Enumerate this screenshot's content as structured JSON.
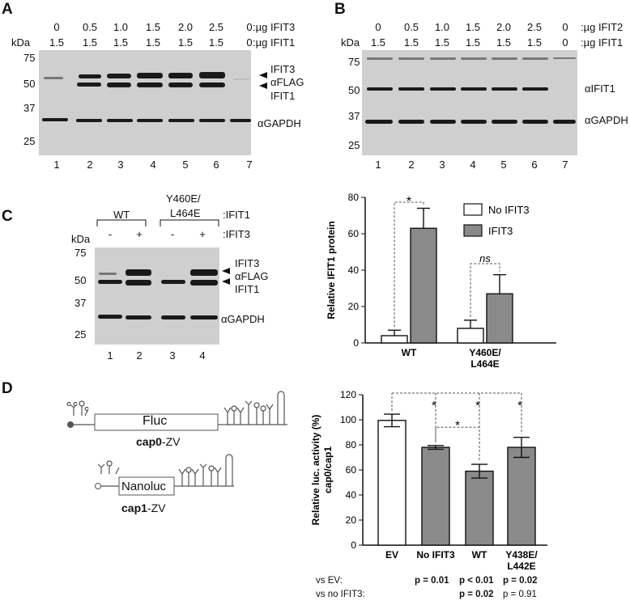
{
  "panelA": {
    "letter": "A",
    "row1_values": [
      "0",
      "0.5",
      "1.0",
      "1.5",
      "2.0",
      "2.5",
      "0"
    ],
    "row1_suffix": ":µg IFIT3",
    "row2_values": [
      "1.5",
      "1.5",
      "1.5",
      "1.5",
      "1.5",
      "1.5",
      "0"
    ],
    "row2_suffix": ":µg IFIT1",
    "kda": "kDa",
    "markers": [
      "75",
      "50",
      "37",
      "25"
    ],
    "lanes": [
      "1",
      "2",
      "3",
      "4",
      "5",
      "6",
      "7"
    ],
    "right_labels": {
      "ifit3": "IFIT3",
      "aflag": "αFLAG",
      "ifit1": "IFIT1",
      "gapdh": "αGAPDH"
    }
  },
  "panelB": {
    "letter": "B",
    "row1_values": [
      "0",
      "0.5",
      "1.0",
      "1.5",
      "2.0",
      "2.5",
      "0"
    ],
    "row1_suffix": ":µg IFIT2",
    "row2_values": [
      "1.5",
      "1.5",
      "1.5",
      "1.5",
      "1.5",
      "1.5",
      "0"
    ],
    "row2_suffix": ":µg IFIT1",
    "kda": "kDa",
    "markers": [
      "75",
      "50",
      "37",
      "25"
    ],
    "lanes": [
      "1",
      "2",
      "3",
      "4",
      "5",
      "6",
      "7"
    ],
    "right_labels": {
      "aifit1": "αIFIT1",
      "gapdh": "αGAPDH"
    }
  },
  "panelC": {
    "letter": "C",
    "group_wt": "WT",
    "group_mut_line1": "Y460E/",
    "group_mut_line2": "L464E",
    "group_suffix": ":IFIT1",
    "ifit3_signs": [
      "-",
      "+",
      "-",
      "+"
    ],
    "ifit3_suffix": ":IFIT3",
    "kda": "kDa",
    "markers": [
      "75",
      "50",
      "37",
      "25"
    ],
    "lanes": [
      "1",
      "2",
      "3",
      "4"
    ],
    "right_labels": {
      "ifit3": "IFIT3",
      "aflag": "αFLAG",
      "ifit1": "IFIT1",
      "gapdh": "αGAPDH"
    }
  },
  "panelD": {
    "letter": "D",
    "fluc_label": "Fluc",
    "cap0_bold": "cap0",
    "cap0_rest": "-ZV",
    "nanoluc_label": "Nanoluc",
    "cap1_bold": "cap1",
    "cap1_rest": "-ZV",
    "stats_vs_ev_label": "vs EV:",
    "stats_vs_noifit3_label": "vs no IFIT3:",
    "stats_vs_ev": [
      "p = 0.01",
      "p < 0.01",
      "p = 0.02"
    ],
    "stats_vs_noifit3": [
      "p = 0.02",
      "p = 0.91"
    ]
  },
  "chart_data": [
    {
      "type": "bar",
      "ylabel": "Relative IFIT1 protein",
      "ylim": [
        0,
        80
      ],
      "yticks": [
        "0",
        "20",
        "40",
        "60",
        "80"
      ],
      "categories": [
        "WT",
        "Y460E/\nL464E"
      ],
      "category_labels": [
        [
          "WT"
        ],
        [
          "Y460E/",
          "L464E"
        ]
      ],
      "series": [
        {
          "name": "No IFIT3",
          "color": "#ffffff",
          "values": [
            4,
            8
          ],
          "errors": [
            3,
            4.5
          ]
        },
        {
          "name": "IFIT3",
          "color": "#8a8a8a",
          "values": [
            63,
            27
          ],
          "errors": [
            11,
            10.5
          ]
        }
      ],
      "annotations": [
        "*",
        "ns"
      ],
      "legend": "top-right"
    },
    {
      "type": "bar",
      "ylabel_line1": "Relative luc. activity (%)",
      "ylabel_line2": "cap0/cap1",
      "ylim": [
        0,
        120
      ],
      "yticks": [
        "0",
        "20",
        "40",
        "60",
        "80",
        "100",
        "120"
      ],
      "categories": [
        "EV",
        "No IFIT3",
        "WT",
        "Y438E/\nL442E"
      ],
      "category_labels": [
        [
          "EV"
        ],
        [
          "No IFIT3"
        ],
        [
          "WT"
        ],
        [
          "Y438E/",
          "L442E"
        ]
      ],
      "values": [
        99.5,
        78,
        59,
        78
      ],
      "errors": [
        5,
        1.5,
        5.5,
        8
      ],
      "colors": [
        "#ffffff",
        "#8a8a8a",
        "#8a8a8a",
        "#8a8a8a"
      ],
      "annotations": [
        "*",
        "*",
        "*",
        "*"
      ]
    }
  ]
}
